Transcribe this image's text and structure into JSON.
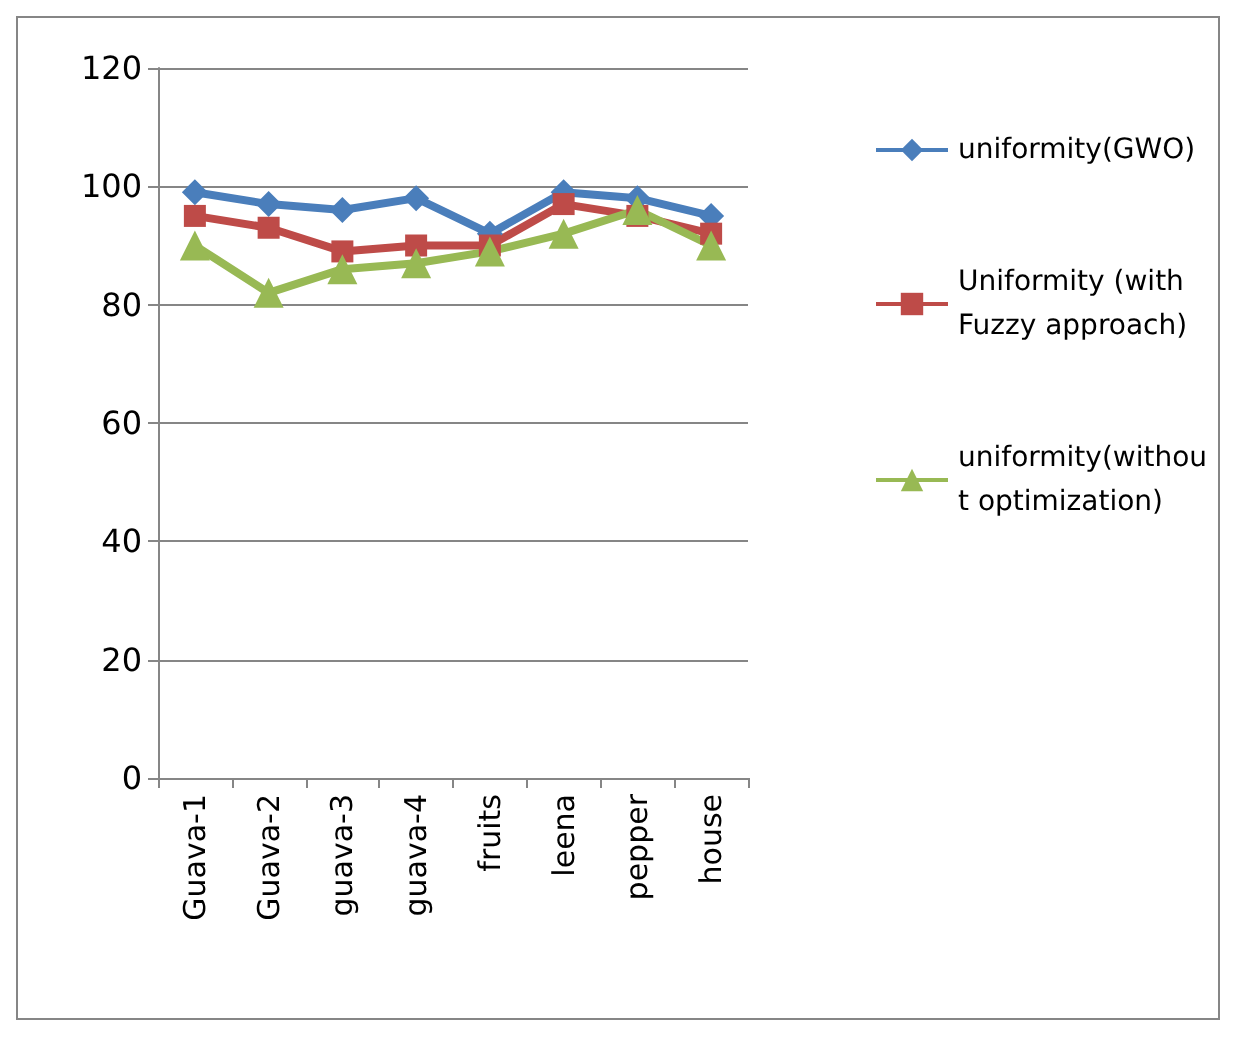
{
  "chart_data": {
    "type": "line",
    "categories": [
      "Guava-1",
      "Guava-2",
      "guava-3",
      "guava-4",
      "fruits",
      "leena",
      "pepper",
      "house"
    ],
    "series": [
      {
        "name": "uniformity(GWO)",
        "color": "#4a7ebb",
        "marker": "diamond",
        "values": [
          99,
          97,
          96,
          98,
          92,
          99,
          98,
          95
        ]
      },
      {
        "name": "Uniformity (with Fuzzy approach)",
        "color": "#be4b48",
        "marker": "square",
        "values": [
          95,
          93,
          89,
          90,
          90,
          97,
          95,
          92
        ]
      },
      {
        "name": "uniformity(without optimization)",
        "color": "#98b954",
        "marker": "triangle",
        "values": [
          90,
          82,
          86,
          87,
          89,
          92,
          96,
          90
        ]
      }
    ],
    "ylim": [
      0,
      120
    ],
    "yticks": [
      0,
      20,
      40,
      60,
      80,
      100,
      120
    ],
    "grid": "y",
    "legend": "right"
  }
}
